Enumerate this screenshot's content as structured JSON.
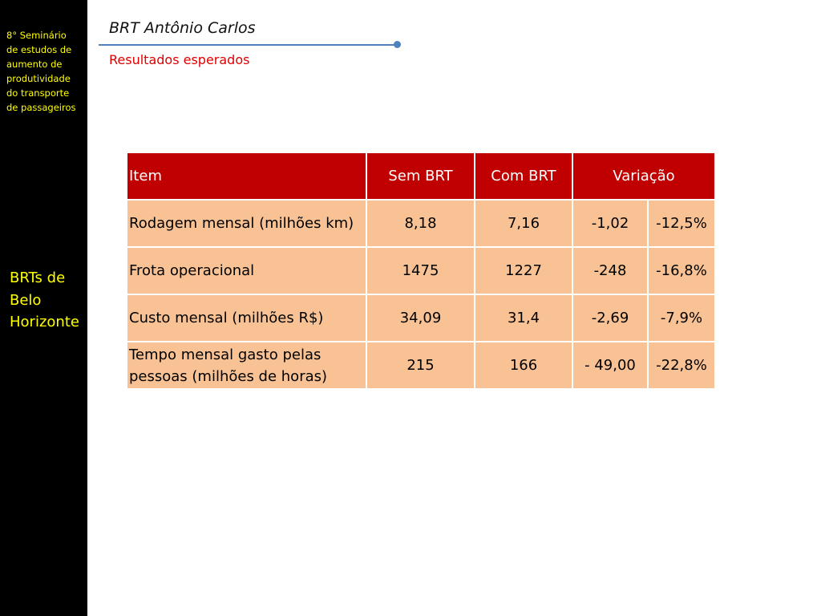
{
  "sidebar": {
    "event_text": "8° Seminário\nde estudos de\naumento de\nprodutividade\ndo transporte\nde passageiros",
    "section_text": "BRTs de\nBelo\nHorizonte"
  },
  "header": {
    "title": "BRT Antônio Carlos",
    "subtitle": "Resultados esperados"
  },
  "table": {
    "headers": {
      "item": "Item",
      "sem": "Sem BRT",
      "com": "Com BRT",
      "variacao": "Variação"
    },
    "rows": [
      {
        "item": "Rodagem mensal (milhões km)",
        "sem": "8,18",
        "com": "7,16",
        "abs": "-1,02",
        "pct": "-12,5%"
      },
      {
        "item": "Frota operacional",
        "sem": "1475",
        "com": "1227",
        "abs": "-248",
        "pct": "-16,8%"
      },
      {
        "item": "Custo mensal (milhões R$)",
        "sem": "34,09",
        "com": "31,4",
        "abs": "-2,69",
        "pct": "-7,9%"
      },
      {
        "item": "Tempo mensal gasto pelas pessoas (milhões de horas)",
        "sem": "215",
        "com": "166",
        "abs": "- 49,00",
        "pct": "-22,8%"
      }
    ]
  },
  "colors": {
    "sidebar_bg": "#000000",
    "sidebar_text": "#ffff00",
    "subtitle": "#e00000",
    "rule": "#4f81bd",
    "table_header_bg": "#c00000",
    "table_body_bg": "#f8c295"
  }
}
